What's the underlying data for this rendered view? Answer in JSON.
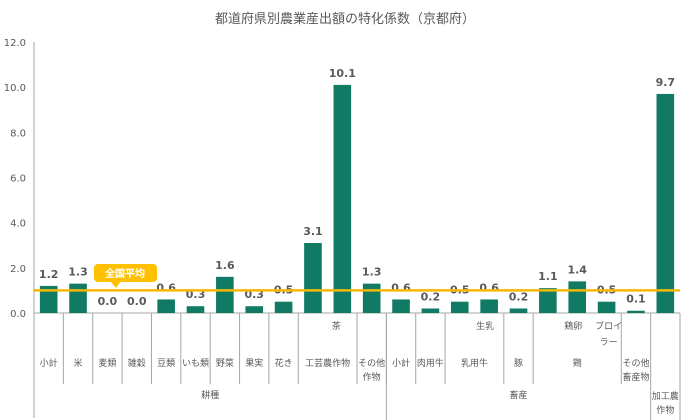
{
  "chart_data": {
    "type": "bar",
    "title": "都道府県別農業産出額の特化係数（京都府）",
    "ylim": [
      0,
      12
    ],
    "yticks": [
      "0.0",
      "2.0",
      "4.0",
      "6.0",
      "8.0",
      "10.0",
      "12.0"
    ],
    "values": [
      1.2,
      1.3,
      0.0,
      0.0,
      0.6,
      0.3,
      1.6,
      0.3,
      0.5,
      3.1,
      10.1,
      1.3,
      0.6,
      0.2,
      0.5,
      0.6,
      0.2,
      1.1,
      1.4,
      0.5,
      0.1,
      9.7
    ],
    "data_labels": [
      "1.2",
      "1.3",
      "0.0",
      "0.0",
      "0.6",
      "0.3",
      "1.6",
      "0.3",
      "0.5",
      "3.1",
      "10.1",
      "1.3",
      "0.6",
      "0.2",
      "0.5",
      "0.6",
      "0.2",
      "1.1",
      "1.4",
      "0.5",
      "0.1",
      "9.7"
    ],
    "level1_labels": [
      {
        "text": "茶",
        "index": 10
      },
      {
        "text": "生乳",
        "index": 15
      },
      {
        "text": "鶏卵",
        "index": 18
      },
      {
        "text": "ブロイ",
        "index": 19,
        "line2": "ラー"
      }
    ],
    "level2_labels": [
      {
        "text": "小計",
        "from": 0,
        "to": 0
      },
      {
        "text": "米",
        "from": 1,
        "to": 1
      },
      {
        "text": "麦類",
        "from": 2,
        "to": 2
      },
      {
        "text": "雑穀",
        "from": 3,
        "to": 3
      },
      {
        "text": "豆類",
        "from": 4,
        "to": 4
      },
      {
        "text": "いも類",
        "from": 5,
        "to": 5
      },
      {
        "text": "野菜",
        "from": 6,
        "to": 6
      },
      {
        "text": "果実",
        "from": 7,
        "to": 7
      },
      {
        "text": "花き",
        "from": 8,
        "to": 8
      },
      {
        "text": "工芸農作物",
        "from": 9,
        "to": 10
      },
      {
        "text": "その他",
        "line2": "作物",
        "from": 11,
        "to": 11
      },
      {
        "text": "小計",
        "from": 12,
        "to": 12
      },
      {
        "text": "肉用牛",
        "from": 13,
        "to": 13
      },
      {
        "text": "乳用牛",
        "from": 14,
        "to": 15
      },
      {
        "text": "豚",
        "from": 16,
        "to": 16
      },
      {
        "text": "鶏",
        "from": 17,
        "to": 19
      },
      {
        "text": "その他",
        "line2": "畜産物",
        "from": 20,
        "to": 20
      }
    ],
    "level3_labels": [
      {
        "text": "耕種",
        "from": 0,
        "to": 11
      },
      {
        "text": "畜産",
        "from": 12,
        "to": 20
      },
      {
        "text": "加工農",
        "line2": "作物",
        "from": 21,
        "to": 21
      }
    ],
    "reference_line": {
      "value": 1.0,
      "label": "全国平均"
    },
    "colors": {
      "bar": "#117A65",
      "line": "#F5B800",
      "callout": "#FFC000",
      "axis": "#A6A6A6",
      "text": "#595959"
    },
    "grid": false,
    "legend": "none"
  }
}
